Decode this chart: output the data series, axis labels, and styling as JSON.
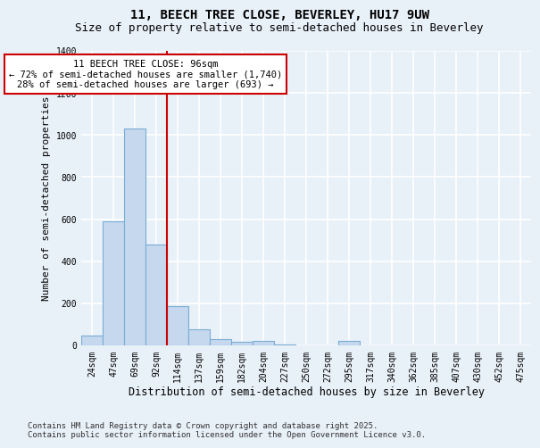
{
  "title_line1": "11, BEECH TREE CLOSE, BEVERLEY, HU17 9UW",
  "title_line2": "Size of property relative to semi-detached houses in Beverley",
  "xlabel": "Distribution of semi-detached houses by size in Beverley",
  "ylabel": "Number of semi-detached properties",
  "footnote1": "Contains HM Land Registry data © Crown copyright and database right 2025.",
  "footnote2": "Contains public sector information licensed under the Open Government Licence v3.0.",
  "bar_labels": [
    "24sqm",
    "47sqm",
    "69sqm",
    "92sqm",
    "114sqm",
    "137sqm",
    "159sqm",
    "182sqm",
    "204sqm",
    "227sqm",
    "250sqm",
    "272sqm",
    "295sqm",
    "317sqm",
    "340sqm",
    "362sqm",
    "385sqm",
    "407sqm",
    "430sqm",
    "452sqm",
    "475sqm"
  ],
  "bar_values": [
    45,
    590,
    1030,
    480,
    185,
    75,
    28,
    18,
    22,
    5,
    0,
    0,
    20,
    0,
    0,
    0,
    0,
    0,
    0,
    0,
    0
  ],
  "bar_color": "#c5d8ee",
  "bar_edge_color": "#7aadd4",
  "background_color": "#e8f0f8",
  "grid_color": "#ffffff",
  "vline_x": 3.5,
  "vline_color": "#cc0000",
  "annotation_line1": "11 BEECH TREE CLOSE: 96sqm",
  "annotation_line2": "← 72% of semi-detached houses are smaller (1,740)",
  "annotation_line3": "28% of semi-detached houses are larger (693) →",
  "annotation_box_facecolor": "#ffffff",
  "annotation_box_edgecolor": "#cc0000",
  "ylim": [
    0,
    1400
  ],
  "yticks": [
    0,
    200,
    400,
    600,
    800,
    1000,
    1200,
    1400
  ],
  "title1_fontsize": 10,
  "title2_fontsize": 9,
  "tick_fontsize": 7,
  "ylabel_fontsize": 8,
  "xlabel_fontsize": 8.5,
  "footnote_fontsize": 6.5
}
